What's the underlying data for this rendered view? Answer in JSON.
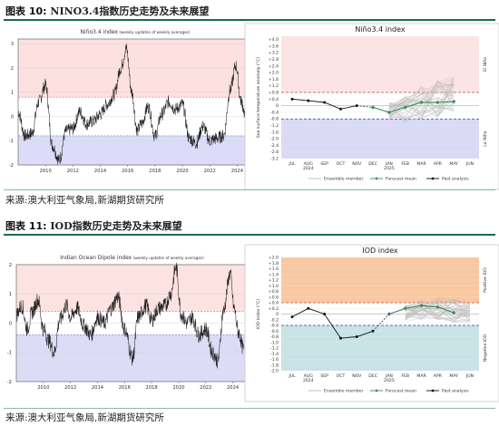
{
  "figures": [
    {
      "label": "图表 10:",
      "title": "NINO3.4指数历史走势及未来展望",
      "source": "来源:澳大利亚气象局,新湖期货研究所"
    },
    {
      "label": "图表 11:",
      "title": "IOD指数历史走势及未来展望",
      "source": "来源:澳大利亚气象局,新湖期货研究所"
    }
  ],
  "chart_data": [
    {
      "type": "line",
      "title": "Niño3.4 index",
      "subtitle": "(weekly updates of weekly averages)",
      "x": [
        2008.0,
        2008.5,
        2009.0,
        2009.5,
        2010.0,
        2010.5,
        2011.0,
        2011.5,
        2012.0,
        2012.5,
        2013.0,
        2013.5,
        2014.0,
        2014.5,
        2015.0,
        2015.5,
        2015.9,
        2016.3,
        2016.7,
        2017.0,
        2017.5,
        2018.0,
        2018.5,
        2019.0,
        2019.5,
        2020.0,
        2020.5,
        2021.0,
        2021.5,
        2022.0,
        2022.5,
        2023.0,
        2023.5,
        2023.9,
        2024.3,
        2024.7,
        2025.0
      ],
      "y": [
        0.2,
        -0.8,
        -0.7,
        0.6,
        1.3,
        -1.2,
        -1.8,
        -0.6,
        -0.5,
        0.2,
        -0.3,
        -0.2,
        0.1,
        0.5,
        0.9,
        2.0,
        2.8,
        1.0,
        -0.6,
        -0.3,
        0.4,
        -0.8,
        0.1,
        0.6,
        0.3,
        0.5,
        -0.9,
        -1.1,
        -0.4,
        -1.0,
        -0.9,
        -0.8,
        1.1,
        2.1,
        0.6,
        -0.2,
        -0.5
      ],
      "xticks": [
        "2010",
        "2012",
        "2014",
        "2016",
        "2018",
        "2020",
        "2022",
        "2024"
      ],
      "yticks": [
        "-2",
        "-1",
        "0",
        "1",
        "2",
        "3"
      ],
      "ylim": [
        -2,
        3.2
      ],
      "el_nino_threshold": 0.8,
      "la_nina_threshold": -0.8
    },
    {
      "type": "line",
      "title": "Niño3.4 index",
      "ylabel": "Sea surface temperature anomaly (°C)",
      "ylim": [
        -3.2,
        4.2
      ],
      "yticks": [
        "+4.0",
        "+3.6",
        "+3.2",
        "+2.8",
        "+2.4",
        "+2.0",
        "+1.6",
        "+1.2",
        "+0.8",
        "+0.4",
        "0",
        "-0.4",
        "-0.8",
        "-1.2",
        "-1.6",
        "-2.0",
        "-2.4",
        "-2.8",
        "-3.2"
      ],
      "categories": [
        "JUL",
        "AUG",
        "SEP",
        "OCT",
        "NOV",
        "DEC",
        "JAN",
        "FEB",
        "MAR",
        "APR",
        "MAY",
        "JUN"
      ],
      "category_sub": {
        "AUG": "2024",
        "JAN": "2025"
      },
      "series": [
        {
          "name": "Past analysis",
          "values": [
            0.4,
            0.3,
            0.2,
            -0.2,
            0.0,
            null,
            null,
            null,
            null,
            null,
            null,
            null
          ]
        },
        {
          "name": "Forecast mean",
          "values": [
            null,
            null,
            null,
            null,
            null,
            -0.1,
            -0.4,
            -0.1,
            0.2,
            0.2,
            0.25,
            null
          ]
        }
      ],
      "ensemble_range": {
        "low": [
          -0.8,
          -1.0,
          -0.8,
          -0.7,
          -0.5
        ],
        "high": [
          0.2,
          0.6,
          1.2,
          1.6,
          1.8
        ]
      },
      "el_nino_threshold": 0.8,
      "la_nina_threshold": -0.8,
      "band_labels": {
        "upper": "El Niño",
        "lower": "La Niña"
      },
      "legend": [
        "Ensemble member",
        "Forecast mean",
        "Past analysis"
      ]
    },
    {
      "type": "line",
      "title": "Indian Ocean Dipole index",
      "subtitle": "(weekly updates of weekly averages)",
      "x": [
        2008.0,
        2008.4,
        2008.8,
        2009.2,
        2009.6,
        2010.0,
        2010.4,
        2010.8,
        2011.2,
        2011.7,
        2012.0,
        2012.5,
        2013.0,
        2013.5,
        2014.0,
        2014.5,
        2015.0,
        2015.5,
        2016.0,
        2016.6,
        2017.0,
        2017.6,
        2018.0,
        2018.5,
        2019.0,
        2019.4,
        2019.8,
        2020.2,
        2020.6,
        2021.0,
        2021.5,
        2022.0,
        2022.5,
        2022.9,
        2023.3,
        2023.8,
        2024.1,
        2024.4,
        2024.8
      ],
      "y": [
        0.3,
        0.6,
        -0.2,
        0.4,
        0.8,
        -0.2,
        -0.6,
        -1.0,
        0.1,
        0.6,
        0.2,
        0.5,
        -0.1,
        -0.4,
        0.2,
        0.0,
        0.5,
        0.9,
        -0.2,
        -1.2,
        0.2,
        0.6,
        0.1,
        0.5,
        0.6,
        1.0,
        1.9,
        0.3,
        0.0,
        0.2,
        -0.4,
        -0.2,
        -1.0,
        -1.3,
        0.4,
        1.7,
        0.5,
        -0.3,
        -0.9
      ],
      "xticks": [
        "2010",
        "2012",
        "2014",
        "2016",
        "2018",
        "2020",
        "2022",
        "2024"
      ],
      "yticks": [
        "-2",
        "-1",
        "0",
        "1",
        "2"
      ],
      "ylim": [
        -2,
        2
      ],
      "positive_threshold": 0.4,
      "negative_threshold": -0.4
    },
    {
      "type": "line",
      "title": "IOD index",
      "ylabel": "IOD index (°C)",
      "ylim": [
        -2.0,
        2.0
      ],
      "yticks": [
        "+2.0",
        "+1.8",
        "+1.6",
        "+1.4",
        "+1.2",
        "+1.0",
        "+0.8",
        "+0.6",
        "+0.4",
        "+0.2",
        "0",
        "-0.2",
        "-0.4",
        "-0.6",
        "-0.8",
        "-1.0",
        "-1.2",
        "-1.4",
        "-1.6",
        "-1.8",
        "-2.0"
      ],
      "categories": [
        "JUL",
        "AUG",
        "SEP",
        "OCT",
        "NOV",
        "DEC",
        "JAN",
        "FEB",
        "MAR",
        "APR",
        "MAY",
        "JUN"
      ],
      "category_sub": {
        "AUG": "2024",
        "JAN": "2025"
      },
      "series": [
        {
          "name": "Past analysis",
          "values": [
            -0.1,
            0.2,
            0.0,
            -0.85,
            -0.8,
            -0.6,
            null,
            null,
            null,
            null,
            null,
            null
          ]
        },
        {
          "name": "Forecast mean",
          "values": [
            null,
            null,
            null,
            null,
            null,
            null,
            0.0,
            0.2,
            0.3,
            0.25,
            0.05,
            null
          ]
        }
      ],
      "ensemble_range": {
        "low": [
          -0.3,
          -0.2,
          -0.2,
          -0.3,
          -0.3
        ],
        "high": [
          0.3,
          0.5,
          0.6,
          0.55,
          0.4
        ]
      },
      "positive_threshold": 0.4,
      "negative_threshold": -0.4,
      "band_labels": {
        "upper": "Positive IOD",
        "lower": "Negative IOD"
      },
      "legend": [
        "Ensemble member",
        "Forecast mean",
        "Past analysis"
      ]
    }
  ],
  "colors": {
    "rule": "#1d6b4a",
    "el_nino_band": "#fde2e2",
    "la_nina_band": "#dcdcf8",
    "pos_iod_band": "#f9c8a0",
    "neg_iod_band": "#c8e3e6",
    "forecast": "#3a8a5a",
    "past": "#111111",
    "ensemble": "#b8b8b8"
  }
}
